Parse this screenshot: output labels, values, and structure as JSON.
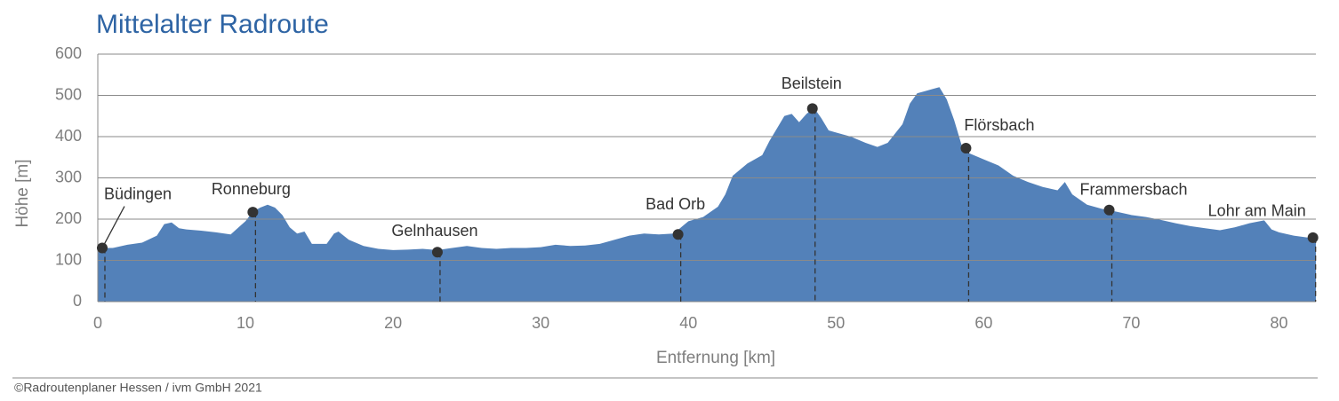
{
  "chart_data": {
    "type": "area",
    "title": "Mittelalter Radroute",
    "xlabel": "Entfernung [km]",
    "ylabel": "Höhe [m]",
    "color": "#5381b9",
    "grid": true,
    "xlim": [
      0,
      82.5
    ],
    "ylim": [
      0,
      600
    ],
    "xticks": [
      0,
      10,
      20,
      30,
      40,
      50,
      60,
      70,
      80
    ],
    "yticks": [
      0,
      100,
      200,
      300,
      400,
      500,
      600
    ],
    "x": [
      0,
      1,
      2,
      3,
      4,
      4.5,
      5,
      5.5,
      6,
      7,
      8,
      9,
      10,
      10.5,
      11,
      11.5,
      12,
      12.5,
      13,
      13.5,
      14,
      14.5,
      15.5,
      16,
      16.3,
      17,
      18,
      19,
      20,
      21,
      22,
      23,
      24,
      25,
      26,
      27,
      28,
      29,
      30,
      31,
      32,
      33,
      34,
      35,
      36,
      37,
      38,
      39,
      40,
      41,
      42,
      42.5,
      43,
      44,
      45,
      45.5,
      46,
      46.5,
      47,
      47.5,
      48,
      48.5,
      49,
      49.5,
      50,
      51,
      52,
      52.8,
      53.5,
      54.5,
      55,
      55.5,
      56,
      56.5,
      57,
      57.5,
      58,
      58.5,
      59,
      60,
      61,
      62,
      63,
      64,
      65,
      65.5,
      66,
      67,
      68,
      69,
      70,
      71,
      72,
      73,
      74,
      75,
      76,
      77,
      78,
      79,
      79.5,
      80,
      81,
      82,
      82.5
    ],
    "values": [
      130,
      130,
      138,
      143,
      160,
      188,
      192,
      178,
      175,
      172,
      168,
      163,
      195,
      218,
      228,
      235,
      228,
      210,
      180,
      165,
      170,
      140,
      140,
      165,
      170,
      150,
      135,
      128,
      125,
      126,
      128,
      125,
      130,
      135,
      130,
      128,
      130,
      130,
      132,
      138,
      135,
      136,
      140,
      150,
      160,
      165,
      163,
      165,
      195,
      205,
      230,
      260,
      305,
      335,
      355,
      390,
      420,
      450,
      455,
      435,
      455,
      470,
      445,
      415,
      410,
      400,
      385,
      375,
      385,
      430,
      480,
      505,
      510,
      515,
      520,
      490,
      440,
      380,
      360,
      345,
      330,
      305,
      290,
      278,
      270,
      290,
      260,
      235,
      225,
      218,
      210,
      205,
      198,
      190,
      183,
      178,
      173,
      180,
      190,
      197,
      175,
      168,
      160,
      155,
      152
    ],
    "waypoints": {
      "color": "#333333",
      "names": [
        "Büdingen",
        "Ronneburg",
        "Gelnhausen",
        "Bad Orb",
        "Beilstein",
        "Flörsbach",
        "Frammersbach",
        "Lohr am Main"
      ],
      "x": [
        0.3,
        10.5,
        23,
        39.3,
        48.4,
        58.8,
        68.5,
        82.3
      ],
      "values": [
        130,
        217,
        120,
        163,
        468,
        372,
        222,
        155
      ]
    }
  },
  "footer": "©Radroutenplaner Hessen / ivm GmbH 2021"
}
